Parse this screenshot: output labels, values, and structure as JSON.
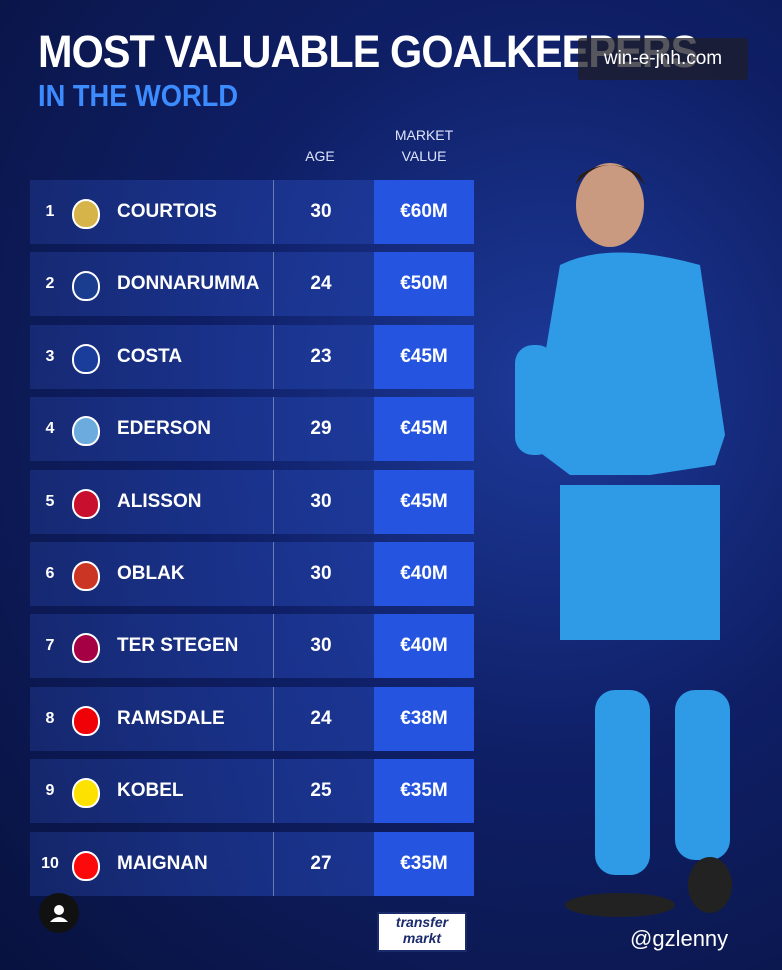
{
  "header": {
    "title": "MOST VALUABLE GOALKEEPERS",
    "subtitle": "IN THE WORLD",
    "watermark": "win-e-jnh.com"
  },
  "table": {
    "columns": [
      "AGE",
      "MARKET VALUE"
    ],
    "rows": [
      {
        "rank": 1,
        "name": "COURTOIS",
        "age": 30,
        "value": "€60M"
      },
      {
        "rank": 2,
        "name": "DONNARUMMA",
        "age": 24,
        "value": "€50M"
      },
      {
        "rank": 3,
        "name": "COSTA",
        "age": 23,
        "value": "€45M"
      },
      {
        "rank": 4,
        "name": "EDERSON",
        "age": 29,
        "value": "€45M"
      },
      {
        "rank": 5,
        "name": "ALISSON",
        "age": 30,
        "value": "€45M"
      },
      {
        "rank": 6,
        "name": "OBLAK",
        "age": 30,
        "value": "€40M"
      },
      {
        "rank": 7,
        "name": "TER STEGEN",
        "age": 30,
        "value": "€40M"
      },
      {
        "rank": 8,
        "name": "RAMSDALE",
        "age": 24,
        "value": "€38M"
      },
      {
        "rank": 9,
        "name": "KOBEL",
        "age": 25,
        "value": "€35M"
      },
      {
        "rank": 10,
        "name": "MAIGNAN",
        "age": 27,
        "value": "€35M"
      }
    ]
  },
  "footer": {
    "logo_top": "transfer",
    "logo_bottom": "markt",
    "credit": "@gzlenny"
  }
}
